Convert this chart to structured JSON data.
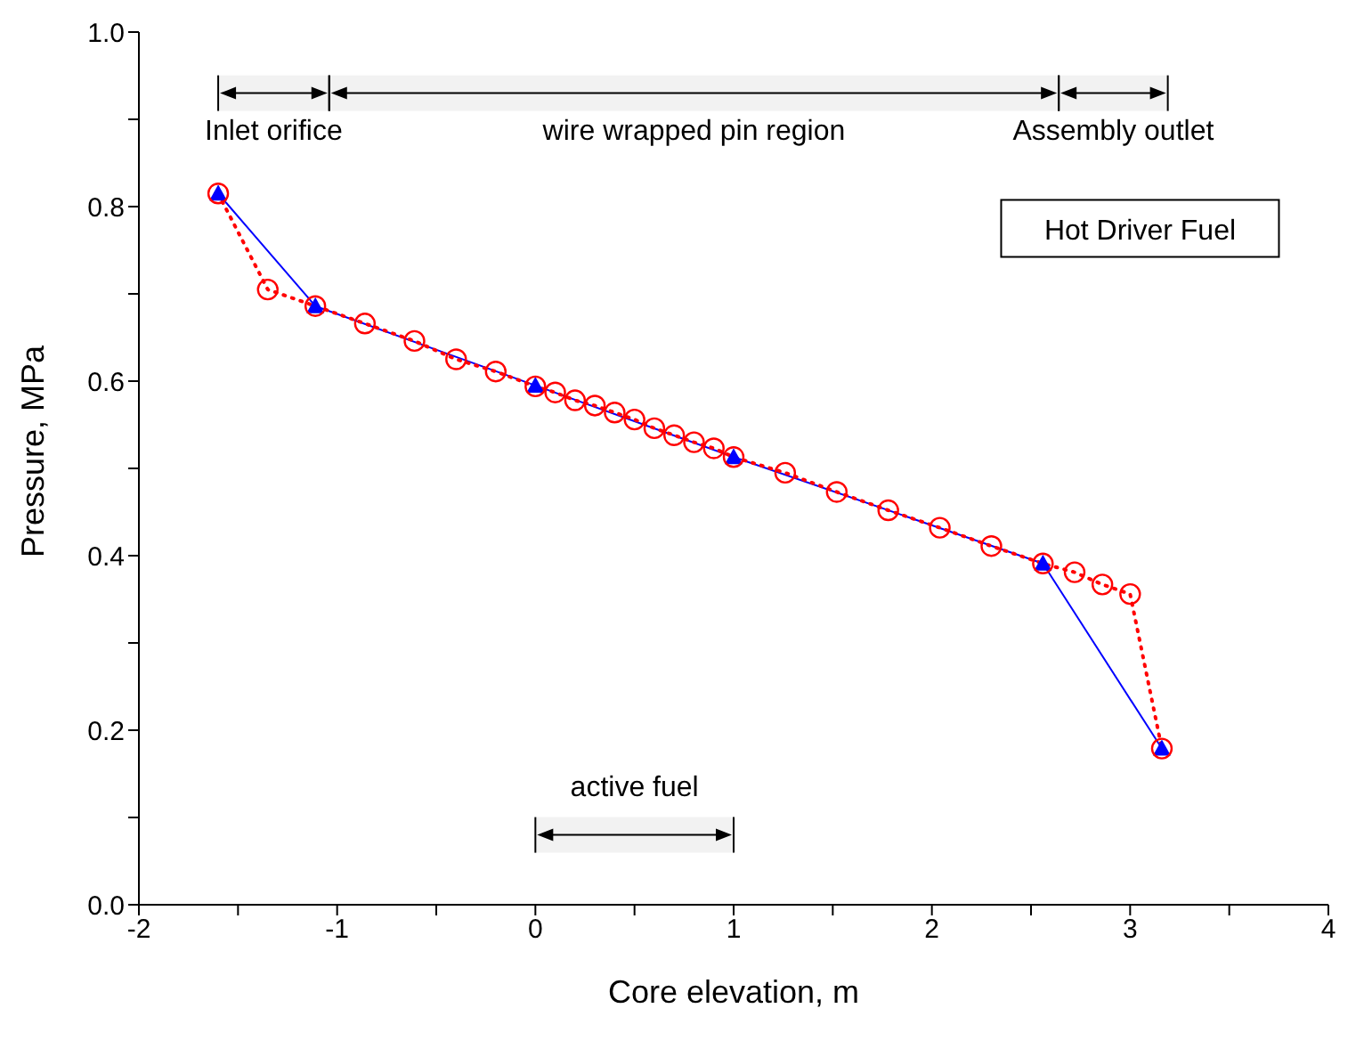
{
  "chart_data": {
    "type": "line",
    "xlabel": "Core elevation, m",
    "ylabel": "Pressure, MPa",
    "xlim": [
      -2,
      4
    ],
    "xticks": [
      -2,
      {
        "value": -1.5,
        "label": null
      },
      -1,
      {
        "value": -0.5,
        "label": null
      },
      0,
      {
        "value": 0.5,
        "label": null
      },
      1,
      {
        "value": 1.5,
        "label": null
      },
      2,
      {
        "value": 2.5,
        "label": null
      },
      3,
      {
        "value": 3.5,
        "label": null
      },
      4
    ],
    "ylim": [
      0,
      1
    ],
    "yticks": [
      {
        "value": 0,
        "label": "0.0"
      },
      {
        "value": 0.1,
        "label": null
      },
      0.2,
      {
        "value": 0.3,
        "label": null
      },
      0.4,
      {
        "value": 0.5,
        "label": null
      },
      0.6,
      {
        "value": 0.7,
        "label": null
      },
      0.8,
      {
        "value": 0.9,
        "label": null
      },
      {
        "value": 1,
        "label": "1.0"
      }
    ],
    "series": [
      {
        "color": "#0000ff",
        "marker": "triangle",
        "line_style": "solid",
        "x": [
          -1.6,
          -1.11,
          0,
          1,
          2.56,
          3.16
        ],
        "values": [
          0.815,
          0.686,
          0.595,
          0.513,
          0.391,
          0.179
        ]
      },
      {
        "color": "#ff0000",
        "marker": "circle",
        "line_style": "dotted",
        "x": [
          -1.6,
          -1.35,
          -1.11,
          -0.86,
          -0.61,
          -0.4,
          -0.2,
          0,
          0.1,
          0.2,
          0.3,
          0.4,
          0.5,
          0.6,
          0.7,
          0.8,
          0.9,
          1,
          1.26,
          1.52,
          1.78,
          2.04,
          2.3,
          2.56,
          2.72,
          2.86,
          3,
          3.16
        ],
        "values": [
          0.815,
          0.705,
          0.686,
          0.666,
          0.646,
          0.625,
          0.611,
          0.594,
          0.587,
          0.578,
          0.572,
          0.564,
          0.556,
          0.546,
          0.538,
          0.53,
          0.523,
          0.513,
          0.495,
          0.473,
          0.452,
          0.432,
          0.411,
          0.391,
          0.381,
          0.367,
          0.356,
          0.179
        ]
      }
    ],
    "bands": [
      {
        "axis": "x",
        "from": -1.6,
        "to": -1.04,
        "label": "Inlet orifice"
      },
      {
        "axis": "x",
        "from": -1.04,
        "to": 2.64,
        "label": "wire wrapped pin region"
      },
      {
        "axis": "x",
        "from": 2.64,
        "to": 3.19,
        "label": "Assembly outlet"
      },
      {
        "axis": "x",
        "from": 0,
        "to": 1,
        "label": "active fuel"
      }
    ],
    "annotations": [
      "Hot Driver Fuel"
    ],
    "grid": false,
    "legend": false
  }
}
